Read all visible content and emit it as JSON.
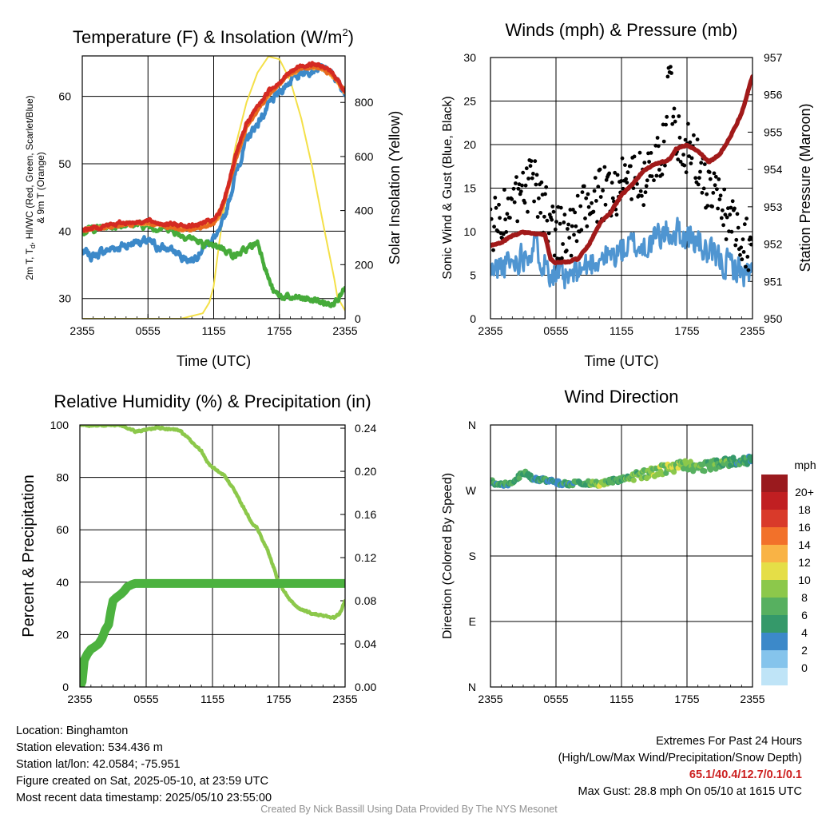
{
  "chart_data": [
    {
      "type": "line",
      "title_parts": [
        "Temperature (F) & Insolation (W/m",
        "2",
        ")"
      ],
      "xlabel": "Time (UTC)",
      "ylabel_lines": [
        "2m T, T",
        "d",
        ", HI/WC (Red, Green, Scarlet/Blue)",
        "& 9m T (Orange)"
      ],
      "y2label": "Solar Insolation (Yellow)",
      "x_ticks": [
        "2355",
        "0555",
        "1155",
        "1755",
        "2355"
      ],
      "ylim": [
        27,
        66
      ],
      "y_ticks": [
        "30",
        "40",
        "50",
        "60"
      ],
      "y2lim": [
        0,
        972
      ],
      "y2_ticks": [
        "0",
        "200",
        "400",
        "600",
        "800"
      ],
      "grid": true,
      "colors": {
        "temp": "#d42a22",
        "dew": "#46ab3a",
        "hiwc": "#e86a1e",
        "temp9m": "#f4a43c",
        "windchill": "#3c89c9",
        "solar": "#f4e048"
      },
      "series": [
        {
          "key": "temp",
          "x": [
            0,
            2,
            4,
            6,
            8,
            10,
            12,
            12.5,
            13,
            14,
            15,
            16,
            17,
            18,
            19,
            20,
            21,
            22,
            23,
            24
          ],
          "y": [
            40.2,
            40.8,
            41.3,
            41.5,
            41.0,
            40.8,
            41.6,
            42.5,
            45,
            51,
            56,
            58.5,
            60.8,
            62.2,
            63.6,
            64.6,
            64.8,
            64.4,
            63.2,
            60.8
          ]
        },
        {
          "key": "temp9m",
          "x": [
            0,
            2,
            4,
            6,
            8,
            10,
            12,
            12.5,
            13,
            14,
            15,
            16,
            17,
            18,
            19,
            20,
            21,
            22,
            23,
            24
          ],
          "y": [
            40.1,
            40.6,
            41.1,
            41.2,
            40.8,
            40.5,
            41.2,
            42.0,
            44.5,
            50.5,
            55.5,
            58,
            60.2,
            61.8,
            63.2,
            64.2,
            64.4,
            64.0,
            62.9,
            60.5
          ]
        },
        {
          "key": "hiwc",
          "x": [
            0,
            2,
            4,
            6,
            8,
            10,
            12,
            13,
            14,
            15,
            16,
            17,
            18,
            19,
            20,
            21,
            22,
            23,
            24
          ],
          "y": [
            40.0,
            40.5,
            41.0,
            41.2,
            40.6,
            40.2,
            41.0,
            44.5,
            50.5,
            55.5,
            58,
            60.2,
            61.8,
            63.2,
            64.2,
            64.4,
            64.0,
            62.9,
            60.8
          ]
        },
        {
          "key": "windchill",
          "x": [
            0,
            1,
            2,
            3,
            4,
            5,
            6,
            7,
            8,
            9,
            10,
            11,
            12,
            12.5,
            13,
            14,
            15,
            16,
            17,
            18,
            19,
            20,
            21,
            22,
            23,
            24
          ],
          "y": [
            36.8,
            36.3,
            37.0,
            37.6,
            37.9,
            38.6,
            38.3,
            37.6,
            37.3,
            36.3,
            35.8,
            37.6,
            39.0,
            39.5,
            42,
            48.5,
            53.5,
            56,
            58.5,
            60.5,
            62.5,
            63.6,
            64.3,
            64.0,
            62.9,
            60.5
          ]
        },
        {
          "key": "dew",
          "x": [
            0,
            2,
            4,
            6,
            7,
            8,
            9,
            10,
            11,
            12,
            12.5,
            13,
            13.5,
            14,
            15,
            16,
            16.5,
            17,
            17.5,
            18,
            19,
            20,
            21,
            22,
            22.5,
            23,
            23.5,
            24
          ],
          "y": [
            40.1,
            40.6,
            41.1,
            40.8,
            40.5,
            40.5,
            39.5,
            39.0,
            38.0,
            37.6,
            37.8,
            37.4,
            36.8,
            36.4,
            37.2,
            38.4,
            36.0,
            33.0,
            30.8,
            30.4,
            30.0,
            30.0,
            29.8,
            29.4,
            29.2,
            29.8,
            30.4,
            31.2
          ]
        },
        {
          "key": "solar",
          "x": [
            0,
            9,
            11.0,
            11.6,
            12.0,
            12.5,
            13,
            14,
            15,
            16,
            17,
            18,
            19,
            20,
            21,
            22,
            23,
            23.3,
            24
          ],
          "y": [
            0,
            0,
            20,
            60,
            120,
            280,
            420,
            640,
            800,
            910,
            970,
            960,
            880,
            740,
            560,
            350,
            150,
            80,
            30
          ]
        }
      ]
    },
    {
      "type": "line",
      "title": "Winds (mph) & Pressure (mb)",
      "xlabel": "Time (UTC)",
      "ylabel": "Sonic Wind & Gust (Blue, Black)",
      "y2label": "Station Pressure (Maroon)",
      "x_ticks": [
        "2355",
        "0555",
        "1155",
        "1755",
        "2355"
      ],
      "ylim": [
        0,
        30
      ],
      "y_ticks": [
        "0",
        "5",
        "10",
        "15",
        "20",
        "25",
        "30"
      ],
      "y2lim": [
        950,
        957
      ],
      "y2_ticks": [
        "950",
        "951",
        "952",
        "953",
        "954",
        "955",
        "956",
        "957"
      ],
      "grid": true,
      "colors": {
        "wind": "#4f95d1",
        "gust": "#000000",
        "pressure": "#a11a1a"
      },
      "series": [
        {
          "key": "wind",
          "x": [
            0,
            1,
            2,
            3,
            4,
            5,
            6,
            7,
            8,
            9,
            10,
            11,
            12,
            13,
            14,
            15,
            16,
            17,
            18,
            19,
            20,
            21,
            22,
            23,
            24
          ],
          "y": [
            5.2,
            6.0,
            6.4,
            7.5,
            8.5,
            6.5,
            5.0,
            4.3,
            5.4,
            6.2,
            7.2,
            7.0,
            7.8,
            8.4,
            8.2,
            9.0,
            9.8,
            10.0,
            9.4,
            8.8,
            7.2,
            6.6,
            6.2,
            5.4,
            5.0
          ]
        },
        {
          "key": "gust",
          "x": [
            0,
            1,
            2,
            3,
            4,
            5,
            6,
            7,
            8,
            9,
            10,
            11,
            12,
            13,
            14,
            15,
            16,
            16.3,
            17,
            18,
            19,
            20,
            21,
            22,
            23,
            24
          ],
          "y": [
            10.5,
            11.8,
            12.4,
            14.2,
            15.6,
            12.5,
            10.2,
            9.6,
            11.2,
            12.8,
            14.0,
            14.6,
            15.6,
            16.4,
            15.8,
            17.4,
            20.0,
            28.8,
            21.5,
            19.8,
            17.6,
            14.8,
            13.2,
            11.4,
            9.8,
            8.2
          ]
        },
        {
          "key": "pressure",
          "x": [
            0,
            1,
            2,
            3,
            4,
            5,
            5.5,
            6,
            7,
            8,
            9,
            10,
            11,
            12,
            13,
            14,
            15,
            16,
            16.5,
            17,
            17.5,
            18,
            19,
            20,
            21,
            22,
            23,
            24
          ],
          "y": [
            951.96,
            952.05,
            952.22,
            952.32,
            952.28,
            952.25,
            951.6,
            951.5,
            951.52,
            951.6,
            951.98,
            952.55,
            952.85,
            953.32,
            953.6,
            953.96,
            954.14,
            954.22,
            954.3,
            954.55,
            954.62,
            954.65,
            954.5,
            954.2,
            954.4,
            954.9,
            955.5,
            956.5
          ]
        }
      ]
    },
    {
      "type": "line",
      "title": "Relative Humidity (%) & Precipitation (in)",
      "ylabel": "Percent & Precipitation",
      "x_ticks": [
        "2355",
        "0555",
        "1155",
        "1755",
        "2355"
      ],
      "ylim": [
        0,
        100
      ],
      "y_ticks": [
        "0",
        "20",
        "40",
        "60",
        "80",
        "100"
      ],
      "y2lim": [
        0,
        0.243
      ],
      "y2_ticks": [
        "0.00",
        "0.04",
        "0.08",
        "0.12",
        "0.16",
        "0.20",
        "0.24"
      ],
      "grid": true,
      "colors": {
        "rh": "#8cc84b",
        "precip": "#4cb23f"
      },
      "series": [
        {
          "key": "rh",
          "x": [
            0,
            2,
            3,
            4,
            5,
            6,
            7,
            8,
            9,
            10,
            11,
            11.5,
            12,
            13,
            14,
            15,
            15.5,
            16,
            17,
            18,
            19,
            20,
            21,
            22,
            23,
            23.5,
            24
          ],
          "y": [
            100,
            100,
            100,
            99.5,
            97.5,
            98,
            99,
            98.5,
            98,
            94,
            90,
            86,
            84,
            81,
            75,
            67,
            63,
            61,
            52,
            40,
            33,
            29.5,
            28,
            27.2,
            26.5,
            28,
            33
          ]
        },
        {
          "key": "precip",
          "x": [
            0,
            0.2,
            0.4,
            0.7,
            1.0,
            1.3,
            1.7,
            2.0,
            2.3,
            2.6,
            2.8,
            3.0,
            3.3,
            3.7,
            4.0,
            4.3,
            4.7,
            5.0,
            6,
            10,
            14,
            18,
            22,
            24
          ],
          "y": [
            0.0,
            0.005,
            0.025,
            0.031,
            0.035,
            0.037,
            0.04,
            0.045,
            0.053,
            0.058,
            0.07,
            0.08,
            0.083,
            0.086,
            0.089,
            0.093,
            0.095,
            0.096,
            0.096,
            0.096,
            0.096,
            0.096,
            0.096,
            0.096
          ]
        }
      ]
    },
    {
      "type": "scatter",
      "title": "Wind Direction",
      "ylabel": "Direction (Colored By Speed)",
      "x_ticks": [
        "2355",
        "0555",
        "1155",
        "1755",
        "2355"
      ],
      "y_ticks": [
        "N",
        "E",
        "S",
        "W",
        "N"
      ],
      "ylim": [
        0,
        360
      ],
      "grid": true,
      "colorbar": {
        "title": "mph",
        "labels": [
          "0",
          "2",
          "4",
          "6",
          "8",
          "10",
          "12",
          "14",
          "16",
          "18",
          "20+"
        ],
        "colors": [
          "#bfe4f7",
          "#85c4ec",
          "#3c89c9",
          "#35996a",
          "#57b060",
          "#8cc84b",
          "#e5de47",
          "#f9b345",
          "#f2712a",
          "#d93a2a",
          "#c11f22",
          "#9a1a1e"
        ]
      },
      "series": [
        {
          "key": "direction",
          "x": [
            0,
            1,
            2,
            3,
            4,
            5,
            6,
            7,
            8,
            9,
            10,
            11,
            12,
            13,
            14,
            15,
            16,
            17,
            18,
            19,
            20,
            21,
            22,
            23,
            24
          ],
          "y": [
            282,
            278,
            280,
            295,
            286,
            284,
            281,
            279,
            280,
            280,
            279,
            283,
            285,
            289,
            292,
            296,
            300,
            303,
            306,
            301,
            304,
            307,
            309,
            312,
            312
          ],
          "speed_mph": [
            5,
            5,
            6,
            6,
            5,
            5,
            4,
            5,
            6,
            6,
            10,
            6,
            7,
            7,
            8,
            9,
            9,
            9,
            8,
            7,
            7,
            7,
            6,
            5,
            5
          ]
        }
      ]
    }
  ],
  "station_info": {
    "location": "Location: Binghamton",
    "elevation": "Station elevation: 534.436 m",
    "latlon": "Station lat/lon: 42.0584; -75.951",
    "created": "Figure created on Sat, 2025-05-10, at 23:59 UTC",
    "recent": "Most recent data timestamp: 2025/05/10 23:55:00"
  },
  "extremes": {
    "title": "Extremes For Past 24 Hours",
    "subtitle": "(High/Low/Max Wind/Precipitation/Snow Depth)",
    "values": "65.1/40.4/12.7/0.1/0.1",
    "max_gust": "Max Gust: 28.8 mph On 05/10 at 1615 UTC"
  },
  "credit": "Created By Nick Bassill Using Data Provided By The NYS Mesonet"
}
